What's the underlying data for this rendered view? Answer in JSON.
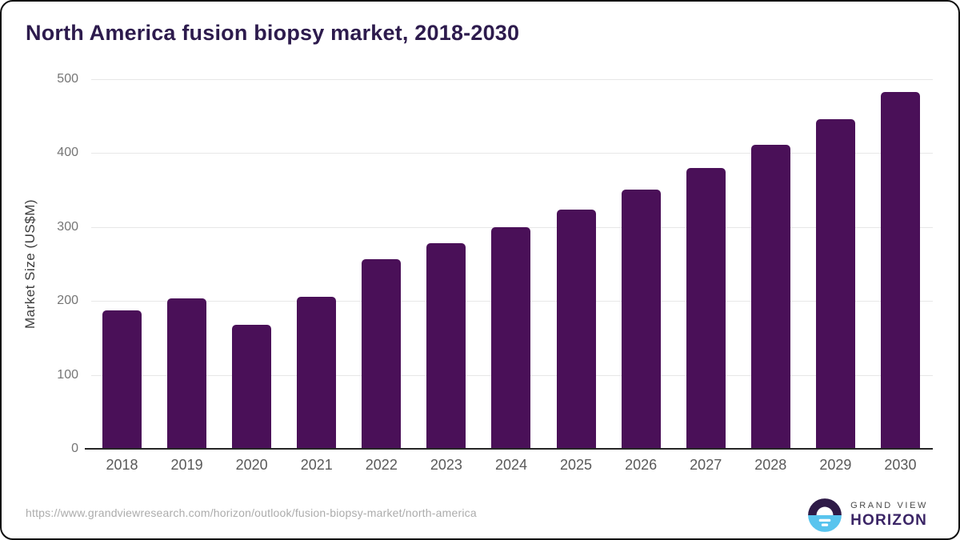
{
  "title": "North America fusion biopsy market, 2018-2030",
  "chart_data": {
    "type": "bar",
    "title": "North America fusion biopsy market, 2018-2030",
    "categories": [
      "2018",
      "2019",
      "2020",
      "2021",
      "2022",
      "2023",
      "2024",
      "2025",
      "2026",
      "2027",
      "2028",
      "2029",
      "2030"
    ],
    "values": [
      187,
      203,
      168,
      206,
      257,
      278,
      300,
      324,
      351,
      380,
      411,
      446,
      483
    ],
    "xlabel": "",
    "ylabel": "Market Size (US$M)",
    "ylim": [
      0,
      500
    ],
    "yticks": [
      0,
      100,
      200,
      300,
      400,
      500
    ],
    "grid": true,
    "legend": "none",
    "bar_color": "#4a1058"
  },
  "footer": {
    "source_url": "https://www.grandviewresearch.com/horizon/outlook/fusion-biopsy-market/north-america",
    "logo": {
      "line1": "GRAND VIEW",
      "line2": "HORIZON",
      "icon": "sunrise-horizon-icon",
      "icon_top_color": "#2e1a47",
      "icon_bottom_color": "#58c4ee"
    }
  },
  "colors": {
    "title_text": "#2d1b4d",
    "bar": "#4a1058",
    "gridline": "#e7e7e7",
    "axis_line": "#262626",
    "tick_text": "#757575",
    "xlabel_text": "#595959",
    "url_text": "#acacac"
  }
}
